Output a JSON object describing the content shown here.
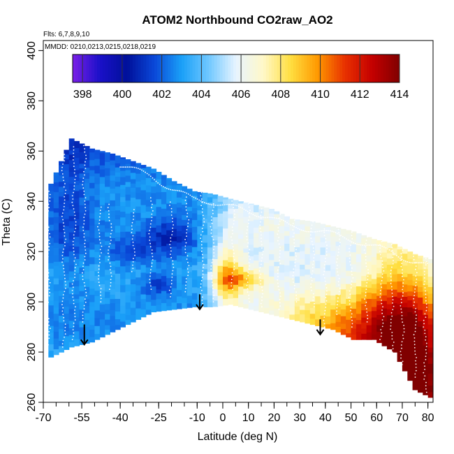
{
  "chart_data": {
    "type": "heatmap",
    "title": "ATOM2 Northbound CO2raw_AO2",
    "annotations": [
      "Flts: 6,7,8,9,10",
      "MMDD: 0210,0213,0215,0218,0219"
    ],
    "xlabel": "Latitude (deg N)",
    "ylabel": "Theta (C)",
    "xlim": [
      -70,
      82
    ],
    "ylim": [
      260,
      404
    ],
    "x_ticks": [
      -70,
      -55,
      -40,
      -25,
      -10,
      0,
      10,
      20,
      30,
      40,
      50,
      60,
      70,
      80
    ],
    "y_ticks": [
      260,
      280,
      300,
      320,
      340,
      360,
      380,
      400
    ],
    "colorbar": {
      "range": [
        397.5,
        414
      ],
      "ticks": [
        398,
        400,
        402,
        404,
        406,
        408,
        410,
        412,
        414
      ],
      "colors": [
        "#7a1fe8",
        "#1a10c8",
        "#00109a",
        "#0a48d8",
        "#1aa0f8",
        "#70c8ff",
        "#e8f4ff",
        "#fff8c8",
        "#ffdf40",
        "#ff9800",
        "#e83000",
        "#c40000",
        "#800000"
      ]
    },
    "field": {
      "description_lat": [
        -68,
        -60,
        -52,
        -44,
        -36,
        -28,
        -20,
        -12,
        -5,
        2,
        10,
        18,
        26,
        34,
        42,
        50,
        58,
        66,
        74,
        80
      ],
      "upper_boundary_theta": [
        347,
        365,
        361,
        359,
        356,
        353,
        348,
        344,
        343,
        341,
        339,
        337,
        333,
        332,
        330,
        328,
        325,
        323,
        319,
        317
      ],
      "lower_boundary_theta": [
        278,
        282,
        284,
        288,
        292,
        296,
        297,
        298,
        298,
        299,
        297,
        295,
        293,
        291,
        289,
        285,
        285,
        280,
        265,
        262
      ]
    },
    "arrows": [
      {
        "lat": -54,
        "theta_top": 291,
        "theta_bottom": 283
      },
      {
        "lat": -9,
        "theta_top": 303,
        "theta_bottom": 297
      },
      {
        "lat": 38,
        "theta_top": 293,
        "theta_bottom": 287
      }
    ]
  }
}
